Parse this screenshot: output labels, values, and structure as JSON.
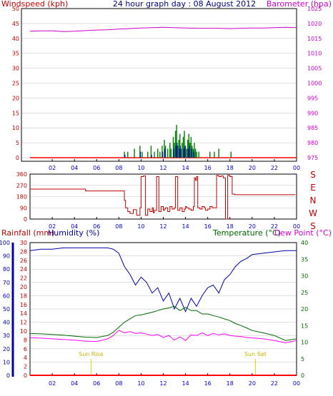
{
  "colors": {
    "frame": "#000000",
    "grid": "#c0c0c0",
    "wind_axis": "#c00000",
    "baro_axis": "#cc00cc",
    "wind_dir": "#c00000",
    "gust": "#008000",
    "wind_avg": "#0000cc",
    "rain": "#ff0000",
    "rain_axis": "#c00000",
    "humidity": "#0000aa",
    "humidity_axis": "#0000aa",
    "temperature": "#006600",
    "dewpoint": "#ff00ff",
    "sun": "#dddd00"
  },
  "chart_data": [
    {
      "type": "line",
      "title": "24 hour graph day : 08 August 2012",
      "ylabel_left": "Windspeed (kph)",
      "ylabel_right": "Barometer (hpa)",
      "x_ticks": [
        "02",
        "04",
        "06",
        "08",
        "10",
        "12",
        "14",
        "16",
        "18",
        "20",
        "22",
        "00"
      ],
      "y_left_ticks": [
        0,
        5,
        10,
        15,
        20,
        25,
        30,
        35,
        40,
        45,
        50
      ],
      "y_right_ticks": [
        975,
        980,
        985,
        990,
        995,
        1000,
        1005,
        1010,
        1015,
        1020,
        1025
      ],
      "ylim_left": [
        0,
        50
      ],
      "ylim_right": [
        975,
        1025
      ],
      "xlim": [
        0,
        24
      ],
      "series": [
        {
          "kind": "barometer",
          "x": [
            0,
            1,
            2,
            3,
            4,
            5,
            6,
            7,
            8,
            9,
            10,
            11,
            12,
            13,
            14,
            15,
            16,
            17,
            18,
            19,
            20,
            21,
            22,
            23,
            24
          ],
          "y": [
            1017.4,
            1017.5,
            1017.5,
            1017.3,
            1017.4,
            1017.6,
            1017.8,
            1017.9,
            1018.1,
            1018.3,
            1018.5,
            1018.6,
            1018.7,
            1018.6,
            1018.5,
            1018.4,
            1018.4,
            1018.4,
            1018.3,
            1018.4,
            1018.5,
            1018.5,
            1018.6,
            1018.7,
            1018.6
          ]
        },
        {
          "kind": "gust",
          "x": [
            8.5,
            8.8,
            9.4,
            9.9,
            10.1,
            10.6,
            10.9,
            11.2,
            11.5,
            11.7,
            11.9,
            12.1,
            12.2,
            12.4,
            12.6,
            12.7,
            12.9,
            13.0,
            13.1,
            13.2,
            13.3,
            13.4,
            13.5,
            13.6,
            13.7,
            13.8,
            13.9,
            14.0,
            14.1,
            14.2,
            14.3,
            14.4,
            14.5,
            14.6,
            14.7,
            14.8,
            14.9,
            15.0,
            15.2,
            16.2,
            16.6,
            17.0,
            18.1
          ],
          "y": [
            2,
            2,
            3,
            4,
            2,
            2,
            4,
            2,
            3,
            2,
            4,
            6,
            4,
            3,
            5,
            3,
            7,
            5,
            9,
            11,
            4,
            6,
            8,
            3,
            5,
            7,
            9,
            4,
            3,
            6,
            8,
            5,
            7,
            4,
            3,
            5,
            3,
            2,
            2,
            2,
            2,
            3,
            2
          ]
        },
        {
          "kind": "wind_avg",
          "x": [
            8.5,
            9.9,
            10.9,
            11.9,
            12.1,
            12.9,
            13.1,
            13.2,
            13.4,
            13.5,
            13.8,
            13.9,
            14.2,
            14.3,
            14.5,
            14.7
          ],
          "y": [
            1,
            2,
            1,
            2,
            3,
            3,
            4,
            5,
            3,
            4,
            3,
            4,
            3,
            4,
            3,
            2
          ]
        }
      ]
    },
    {
      "type": "line",
      "ylabel_right": "S E N W S",
      "y_left_ticks": [
        0,
        90,
        180,
        270,
        360
      ],
      "y_right_labels": [
        "S",
        "E",
        "N",
        "W",
        "S"
      ],
      "ylim": [
        0,
        360
      ],
      "xlim": [
        0,
        24
      ],
      "series": [
        {
          "kind": "wind_direction",
          "x": [
            0,
            3,
            4.9,
            5.0,
            6,
            7,
            8.4,
            8.5,
            8.6,
            8.8,
            9.0,
            9.3,
            9.6,
            9.9,
            10.0,
            10.2,
            10.4,
            10.6,
            10.8,
            11.0,
            11.1,
            11.2,
            11.4,
            11.6,
            11.8,
            12.0,
            12.1,
            12.2,
            12.4,
            12.6,
            12.8,
            13.0,
            13.1,
            13.3,
            13.5,
            13.7,
            13.9,
            14.0,
            14.1,
            14.3,
            14.5,
            14.7,
            14.8,
            14.9,
            15.0,
            15.1,
            15.3,
            15.5,
            15.7,
            15.8,
            16.0,
            16.2,
            16.4,
            16.6,
            16.8,
            17.0,
            17.2,
            17.4,
            17.6,
            17.8,
            18.0,
            18.2,
            18.4,
            19,
            20,
            21,
            22,
            23,
            23.9
          ],
          "y": [
            240,
            240,
            240,
            225,
            225,
            225,
            225,
            150,
            90,
            60,
            45,
            75,
            30,
            90,
            340,
            345,
            30,
            80,
            60,
            90,
            50,
            70,
            340,
            60,
            100,
            70,
            80,
            90,
            60,
            100,
            80,
            90,
            340,
            70,
            90,
            60,
            80,
            100,
            90,
            80,
            70,
            100,
            330,
            310,
            340,
            90,
            80,
            100,
            90,
            70,
            80,
            100,
            90,
            90,
            350,
            340,
            345,
            330,
            0,
            350,
            340,
            200,
            195,
            195,
            195,
            195,
            195,
            195,
            195
          ]
        }
      ]
    },
    {
      "type": "line",
      "ylabel_left": "Rainfall (mm)",
      "ylabel_left2": "Humidity (%)",
      "ylabel_right": "Temperature (°C)",
      "ylabel_right2": "Dew Point (°C)",
      "rain_ticks": [
        0,
        2,
        4,
        6,
        8,
        10,
        12,
        14,
        16,
        18,
        20,
        22,
        24,
        26,
        28,
        30
      ],
      "humidity_ticks": [
        0,
        10,
        20,
        30,
        40,
        50,
        60,
        70,
        80,
        90,
        100
      ],
      "temp_ticks": [
        0,
        5,
        10,
        15,
        20,
        25,
        30,
        35,
        40
      ],
      "ylim_humidity": [
        0,
        100
      ],
      "ylim_temp": [
        0,
        40
      ],
      "ylim_rain": [
        0,
        30
      ],
      "xlim": [
        0,
        24
      ],
      "annotations": [
        {
          "label": "Sun Rise",
          "x": 5.5
        },
        {
          "label": "Sun Set",
          "x": 20.3
        }
      ],
      "series": [
        {
          "kind": "humidity",
          "x": [
            0,
            1,
            2,
            3,
            4,
            5,
            6,
            7,
            7.5,
            8.0,
            8.5,
            9.0,
            9.5,
            10.0,
            10.5,
            11.0,
            11.5,
            12.0,
            12.5,
            13.0,
            13.5,
            14.0,
            14.5,
            15.0,
            15.5,
            16.0,
            16.5,
            17.0,
            17.5,
            18.0,
            18.5,
            19.0,
            19.5,
            20.0,
            21,
            22,
            23,
            24
          ],
          "y": [
            94,
            95,
            95,
            96,
            96,
            96,
            96,
            96,
            95,
            92,
            82,
            76,
            68,
            74,
            70,
            62,
            66,
            56,
            62,
            50,
            58,
            48,
            58,
            52,
            60,
            66,
            68,
            62,
            72,
            76,
            82,
            86,
            88,
            91,
            92,
            93,
            94,
            94
          ]
        },
        {
          "kind": "temperature",
          "x": [
            0,
            1,
            2,
            3,
            4,
            5,
            6,
            7,
            7.5,
            8.0,
            8.5,
            9.0,
            9.5,
            10.0,
            10.5,
            11.0,
            11.5,
            12.0,
            12.5,
            13.0,
            13.5,
            14.0,
            14.5,
            15.0,
            15.5,
            16.0,
            16.5,
            17.0,
            17.5,
            18.0,
            18.5,
            19.0,
            19.5,
            20.0,
            21,
            22,
            23,
            24
          ],
          "y": [
            12.6,
            12.5,
            12.3,
            12.1,
            11.8,
            11.5,
            11.4,
            12.0,
            13.0,
            14.5,
            16.0,
            17.0,
            18.0,
            18.2,
            18.6,
            19.0,
            19.5,
            20.0,
            20.3,
            20.8,
            19.5,
            20.5,
            19.5,
            19.5,
            18.5,
            18.5,
            18.0,
            17.6,
            17.0,
            16.5,
            15.6,
            15.0,
            14.3,
            13.5,
            12.8,
            12.0,
            10.5,
            11.0
          ]
        },
        {
          "kind": "dewpoint",
          "x": [
            0,
            1,
            2,
            3,
            4,
            5,
            6,
            7,
            7.5,
            8.0,
            8.5,
            9.0,
            9.5,
            10.0,
            10.5,
            11.0,
            11.5,
            12.0,
            12.5,
            13.0,
            13.5,
            14.0,
            14.5,
            15.0,
            15.5,
            16.0,
            16.5,
            17.0,
            17.5,
            18.0,
            18.5,
            19.0,
            19.5,
            20.0,
            21,
            22,
            23,
            24
          ],
          "y": [
            11.3,
            11.2,
            11.0,
            10.8,
            10.6,
            10.3,
            10.2,
            11.0,
            12.0,
            13.6,
            12.8,
            13.2,
            12.6,
            12.8,
            12.4,
            12.0,
            12.3,
            11.4,
            12.0,
            10.6,
            11.6,
            10.5,
            12.2,
            12.0,
            12.8,
            12.0,
            12.6,
            12.2,
            12.5,
            12.0,
            11.8,
            11.7,
            11.4,
            11.3,
            11.0,
            10.5,
            9.8,
            10.5
          ]
        },
        {
          "kind": "rainfall",
          "x": [
            0,
            24
          ],
          "y": [
            0,
            0
          ]
        }
      ]
    }
  ]
}
